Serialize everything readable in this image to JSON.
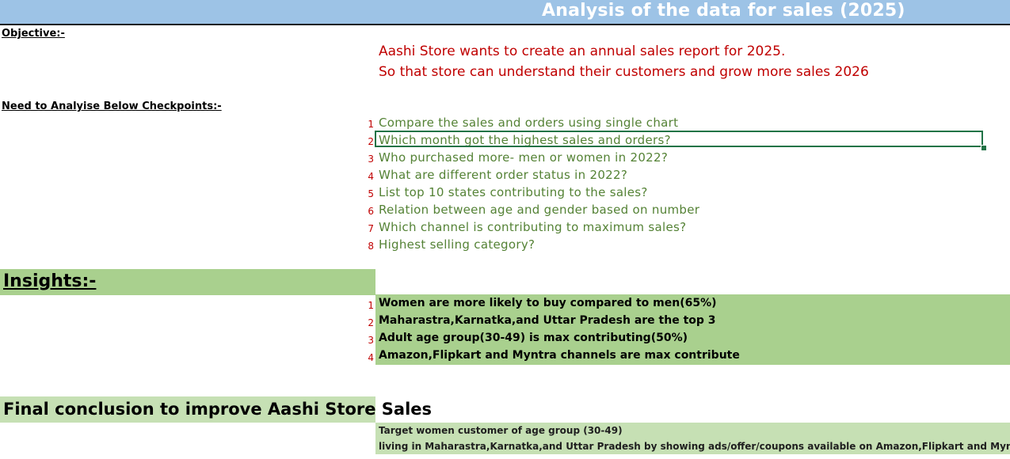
{
  "title": "Analysis of the data for sales (2025)",
  "objective_label": "Objective:-",
  "objective_lines": [
    "Aashi Store wants to create an annual sales report for 2025.",
    "So that store can understand their customers and grow more sales 2026"
  ],
  "checkpoints_label": "Need to Analyise Below Checkpoints:-",
  "checkpoints": [
    {
      "num": "1",
      "text": "Compare the sales and orders using single chart"
    },
    {
      "num": "2",
      "text": "Which month got the highest sales and orders?"
    },
    {
      "num": "3",
      "text": "Who purchased more- men or women in 2022?"
    },
    {
      "num": "4",
      "text": "What are different order status in 2022?"
    },
    {
      "num": "5",
      "text": "List top 10 states contributing to the sales?"
    },
    {
      "num": "6",
      "text": "Relation between age and gender based on number"
    },
    {
      "num": "7",
      "text": "Which channel is contributing to maximum sales?"
    },
    {
      "num": "8",
      "text": "Highest selling category?"
    }
  ],
  "insights_label": "Insights:-",
  "insights": [
    {
      "num": "1",
      "text": "Women are more likely to buy compared to men(65%)"
    },
    {
      "num": "2",
      "text": "Maharastra,Karnatka,and Uttar Pradesh are the top 3"
    },
    {
      "num": "3",
      "text": "Adult age group(30-49) is max contributing(50%)"
    },
    {
      "num": "4",
      "text": "Amazon,Flipkart and Myntra channels are max contribute"
    }
  ],
  "conclusion_label": "Final conclusion to improve Aashi Store Sales",
  "conclusion_lines": [
    "Target women customer of age group (30-49)",
    "living in  Maharastra,Karnatka,and Uttar Pradesh by showing ads/offer/coupons available on Amazon,Flipkart and Myntra"
  ],
  "colors": {
    "title_bar": "#9dc3e6",
    "objective_text": "#c00000",
    "checkpoint_text": "#548235",
    "insights_fill": "#a9d08e",
    "conclusion_fill": "#c6e0b4",
    "selection_border": "#217346"
  }
}
